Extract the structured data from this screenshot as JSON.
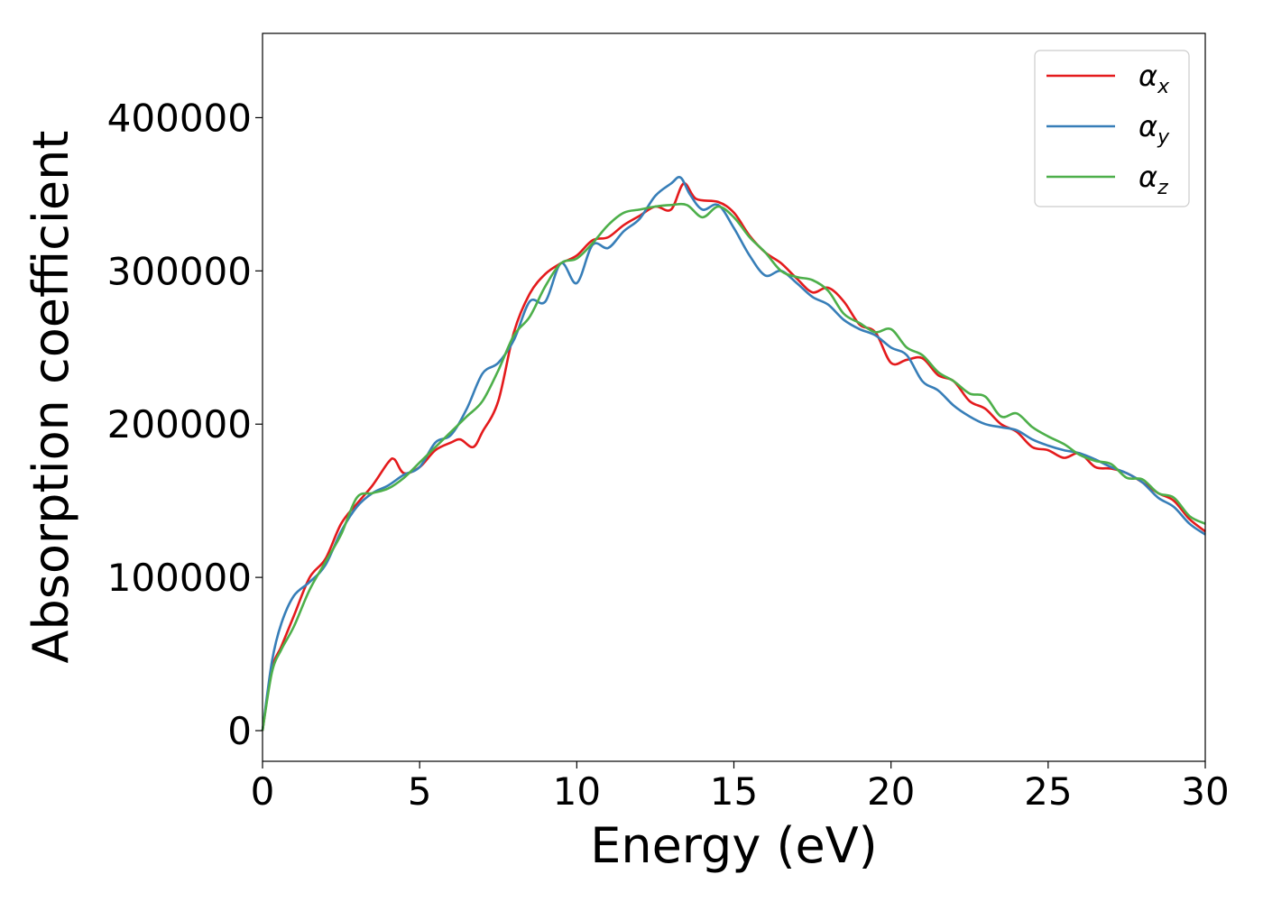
{
  "chart_data": {
    "type": "line",
    "title": "",
    "xlabel": "Energy (eV)",
    "ylabel": "Absorption coefficient",
    "xlim": [
      0,
      30
    ],
    "ylim": [
      -20000,
      455000
    ],
    "xticks": [
      0,
      5,
      10,
      15,
      20,
      25,
      30
    ],
    "xtick_labels": [
      "0",
      "5",
      "10",
      "15",
      "20",
      "25",
      "30"
    ],
    "yticks": [
      0,
      100000,
      200000,
      300000,
      400000
    ],
    "ytick_labels": [
      "0",
      "100000",
      "200000",
      "300000",
      "400000"
    ],
    "grid": false,
    "legend_position": "top-right",
    "series": [
      {
        "name": "αx",
        "symbol": "α",
        "subscript": "x",
        "color": "#e41a1c",
        "x": [
          0,
          0.3,
          0.6,
          1.0,
          1.5,
          2.0,
          2.5,
          3.0,
          3.5,
          4.0,
          4.2,
          4.5,
          5.0,
          5.5,
          6.0,
          6.3,
          6.7,
          7.0,
          7.5,
          8.0,
          8.5,
          9.0,
          9.5,
          10.0,
          10.5,
          11.0,
          11.5,
          12.0,
          12.5,
          13.0,
          13.4,
          13.8,
          14.5,
          15.0,
          15.5,
          16.0,
          16.5,
          17.0,
          17.5,
          18.0,
          18.5,
          19.0,
          19.5,
          20.0,
          20.5,
          21.0,
          21.5,
          22.0,
          22.5,
          23.0,
          23.5,
          24.0,
          24.5,
          25.0,
          25.5,
          26.0,
          26.5,
          27.0,
          27.5,
          28.0,
          28.5,
          29.0,
          29.5,
          30.0
        ],
        "y": [
          0,
          40000,
          55000,
          75000,
          100000,
          112000,
          135000,
          148000,
          160000,
          175000,
          177000,
          168000,
          172000,
          183000,
          188000,
          190000,
          185000,
          195000,
          215000,
          260000,
          285000,
          298000,
          305000,
          310000,
          320000,
          322000,
          330000,
          336000,
          342000,
          340000,
          357000,
          347000,
          345000,
          338000,
          323000,
          312000,
          305000,
          295000,
          286000,
          289000,
          280000,
          265000,
          260000,
          240000,
          242000,
          243000,
          232000,
          228000,
          215000,
          210000,
          200000,
          195000,
          185000,
          183000,
          178000,
          181000,
          172000,
          171000,
          168000,
          162000,
          155000,
          150000,
          138000,
          130000
        ]
      },
      {
        "name": "αy",
        "symbol": "α",
        "subscript": "y",
        "color": "#377eb8",
        "x": [
          0,
          0.3,
          0.6,
          1.0,
          1.5,
          2.0,
          2.5,
          3.0,
          3.5,
          4.0,
          4.5,
          5.0,
          5.5,
          6.0,
          6.5,
          7.0,
          7.5,
          8.0,
          8.5,
          9.0,
          9.5,
          10.0,
          10.5,
          11.0,
          11.5,
          12.0,
          12.5,
          13.0,
          13.3,
          13.6,
          14.0,
          14.5,
          15.0,
          15.5,
          16.0,
          16.5,
          17.0,
          17.5,
          18.0,
          18.5,
          19.0,
          19.5,
          20.0,
          20.5,
          21.0,
          21.5,
          22.0,
          22.5,
          23.0,
          23.5,
          24.0,
          24.5,
          25.0,
          25.5,
          26.0,
          26.5,
          27.0,
          27.5,
          28.0,
          28.5,
          29.0,
          29.5,
          30.0
        ],
        "y": [
          0,
          45000,
          70000,
          88000,
          97000,
          108000,
          130000,
          146000,
          155000,
          160000,
          167000,
          172000,
          188000,
          193000,
          210000,
          233000,
          240000,
          255000,
          280000,
          280000,
          305000,
          292000,
          317000,
          315000,
          326000,
          334000,
          349000,
          357000,
          361000,
          350000,
          340000,
          343000,
          328000,
          310000,
          297000,
          300000,
          292000,
          283000,
          278000,
          268000,
          262000,
          258000,
          250000,
          245000,
          228000,
          222000,
          212000,
          205000,
          200000,
          198000,
          196000,
          190000,
          186000,
          183000,
          181000,
          177000,
          172000,
          168000,
          162000,
          152000,
          146000,
          135000,
          128000
        ]
      },
      {
        "name": "αz",
        "symbol": "α",
        "subscript": "z",
        "color": "#4daf4a",
        "x": [
          0,
          0.3,
          0.6,
          1.0,
          1.5,
          2.0,
          2.5,
          3.0,
          3.5,
          4.0,
          4.5,
          5.0,
          5.5,
          6.0,
          6.5,
          7.0,
          7.5,
          8.0,
          8.5,
          9.0,
          9.5,
          10.0,
          10.5,
          11.0,
          11.5,
          12.0,
          12.5,
          13.0,
          13.5,
          14.0,
          14.5,
          15.0,
          15.5,
          16.0,
          16.5,
          17.0,
          17.5,
          18.0,
          18.5,
          19.0,
          19.5,
          20.0,
          20.5,
          21.0,
          21.5,
          22.0,
          22.5,
          23.0,
          23.5,
          24.0,
          24.5,
          25.0,
          25.5,
          26.0,
          26.5,
          27.0,
          27.5,
          28.0,
          28.5,
          29.0,
          29.5,
          30.0
        ],
        "y": [
          0,
          38000,
          53000,
          68000,
          92000,
          110000,
          128000,
          152000,
          155000,
          158000,
          165000,
          175000,
          185000,
          195000,
          205000,
          215000,
          235000,
          258000,
          270000,
          290000,
          305000,
          308000,
          318000,
          330000,
          338000,
          340000,
          342000,
          343000,
          343000,
          335000,
          342000,
          335000,
          322000,
          312000,
          300000,
          296000,
          294000,
          287000,
          272000,
          266000,
          260000,
          262000,
          250000,
          245000,
          234000,
          228000,
          220000,
          218000,
          205000,
          207000,
          198000,
          192000,
          187000,
          180000,
          176000,
          174000,
          165000,
          164000,
          155000,
          152000,
          140000,
          135000
        ]
      }
    ]
  }
}
